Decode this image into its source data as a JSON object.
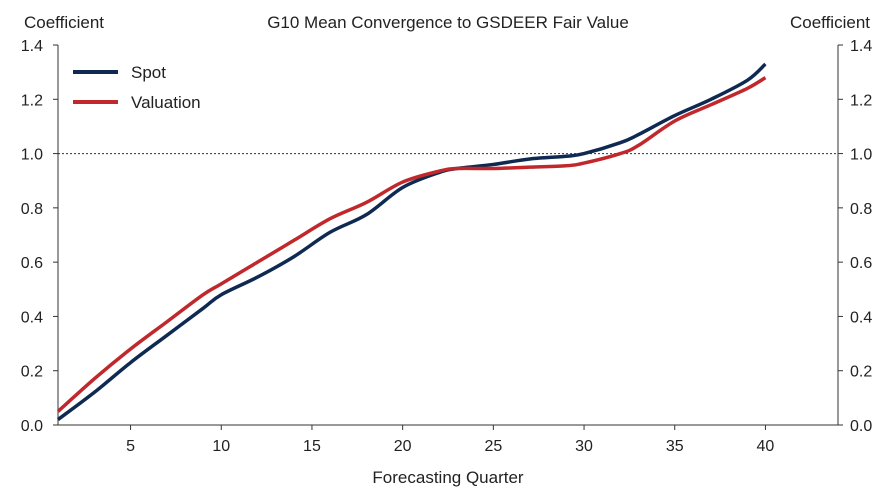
{
  "chart_data": {
    "type": "line",
    "title": "G10 Mean Convergence to GSDEER Fair Value",
    "xlabel": "Forecasting Quarter",
    "ylabel_left": "Coefficient",
    "ylabel_right": "Coefficient",
    "xlim": [
      1,
      44
    ],
    "ylim": [
      0,
      1.4
    ],
    "x_ticks": [
      5,
      10,
      15,
      20,
      25,
      30,
      35,
      40
    ],
    "y_ticks": [
      "0.0",
      "0.2",
      "0.4",
      "0.6",
      "0.8",
      "1.0",
      "1.2",
      "1.4"
    ],
    "reference_line": {
      "y": 1.0,
      "style": "dotted"
    },
    "legend": {
      "position": "top-left"
    },
    "x": [
      1,
      3,
      5,
      7,
      9,
      10,
      12,
      14,
      16,
      18,
      20,
      22,
      23,
      25,
      27,
      29,
      30,
      32,
      33,
      35,
      37,
      39,
      40
    ],
    "series": [
      {
        "name": "Spot",
        "color": "#0f2a52",
        "values": [
          0.02,
          0.12,
          0.23,
          0.33,
          0.43,
          0.48,
          0.545,
          0.62,
          0.71,
          0.775,
          0.875,
          0.93,
          0.945,
          0.96,
          0.98,
          0.99,
          1.0,
          1.04,
          1.07,
          1.14,
          1.2,
          1.27,
          1.33
        ]
      },
      {
        "name": "Valuation",
        "color": "#c0282c",
        "values": [
          0.05,
          0.17,
          0.28,
          0.38,
          0.48,
          0.52,
          0.6,
          0.68,
          0.76,
          0.82,
          0.895,
          0.935,
          0.945,
          0.945,
          0.95,
          0.955,
          0.965,
          1.0,
          1.03,
          1.12,
          1.18,
          1.24,
          1.28
        ]
      }
    ]
  }
}
